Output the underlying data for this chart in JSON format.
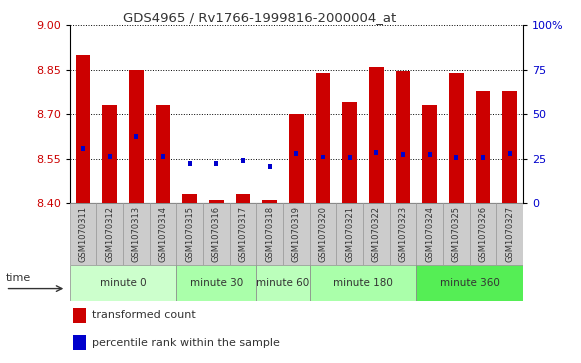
{
  "title": "GDS4965 / Rv1766-1999816-2000004_at",
  "samples": [
    "GSM1070311",
    "GSM1070312",
    "GSM1070313",
    "GSM1070314",
    "GSM1070315",
    "GSM1070316",
    "GSM1070317",
    "GSM1070318",
    "GSM1070319",
    "GSM1070320",
    "GSM1070321",
    "GSM1070322",
    "GSM1070323",
    "GSM1070324",
    "GSM1070325",
    "GSM1070326",
    "GSM1070327"
  ],
  "bar_values": [
    8.9,
    8.73,
    8.85,
    8.73,
    8.43,
    8.41,
    8.43,
    8.41,
    8.7,
    8.84,
    8.74,
    8.86,
    8.845,
    8.73,
    8.84,
    8.78,
    8.78
  ],
  "blue_values": [
    8.585,
    8.558,
    8.625,
    8.558,
    8.535,
    8.535,
    8.545,
    8.525,
    8.568,
    8.556,
    8.555,
    8.572,
    8.564,
    8.564,
    8.555,
    8.555,
    8.568
  ],
  "ymin": 8.4,
  "ymax": 9.0,
  "yticks": [
    8.4,
    8.55,
    8.7,
    8.85,
    9.0
  ],
  "y2min": 0,
  "y2max": 100,
  "y2ticks": [
    0,
    25,
    50,
    75,
    100
  ],
  "bar_color": "#cc0000",
  "blue_color": "#0000cc",
  "bar_bottom": 8.4,
  "groups": [
    {
      "label": "minute 0",
      "start": 0,
      "end": 4,
      "color": "#ccffcc"
    },
    {
      "label": "minute 30",
      "start": 4,
      "end": 7,
      "color": "#aaffaa"
    },
    {
      "label": "minute 60",
      "start": 7,
      "end": 9,
      "color": "#bbffbb"
    },
    {
      "label": "minute 180",
      "start": 9,
      "end": 13,
      "color": "#aaffaa"
    },
    {
      "label": "minute 360",
      "start": 13,
      "end": 17,
      "color": "#55ee55"
    }
  ],
  "title_color": "#333333",
  "bar_label_color": "#cc0000",
  "tick2_label_color": "#0000cc",
  "sample_box_color": "#cccccc",
  "sample_box_edge": "#999999"
}
